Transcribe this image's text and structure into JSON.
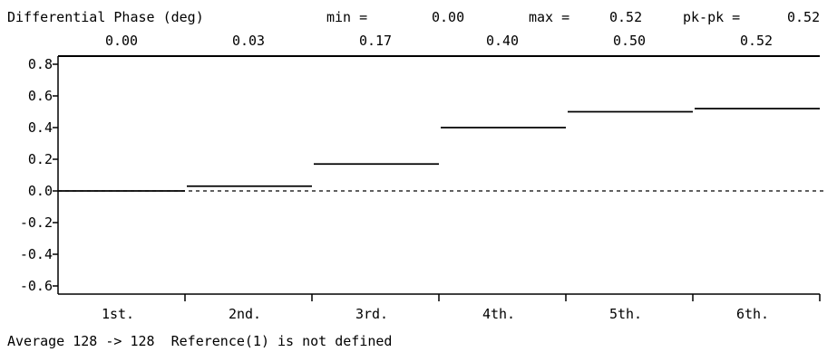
{
  "header": {
    "title": "Differential Phase (deg)",
    "min_label": "min =",
    "min_value": "0.00",
    "max_label": "max =",
    "max_value": "0.52",
    "pkpk_label": "pk-pk =",
    "pkpk_value": "0.52"
  },
  "footer": {
    "status": "Average 128 -> 128  Reference(1) is not defined"
  },
  "chart_data": {
    "type": "line",
    "title": "Differential Phase (deg)",
    "categories": [
      "1st.",
      "2nd.",
      "3rd.",
      "4th.",
      "5th.",
      "6th."
    ],
    "values": [
      0.0,
      0.03,
      0.17,
      0.4,
      0.5,
      0.52
    ],
    "value_labels": [
      "0.00",
      "0.03",
      "0.17",
      "0.40",
      "0.50",
      "0.52"
    ],
    "yticks": [
      0.8,
      0.6,
      0.4,
      0.2,
      0.0,
      -0.2,
      -0.4,
      -0.6
    ],
    "ytick_labels": [
      "0.8",
      "0.6",
      "0.4",
      "0.2",
      "0.0",
      "-0.2",
      "-0.4",
      "-0.6"
    ],
    "ylim": [
      -0.65,
      0.85
    ],
    "zero_line": "dashed",
    "grid": false,
    "style": "step"
  }
}
